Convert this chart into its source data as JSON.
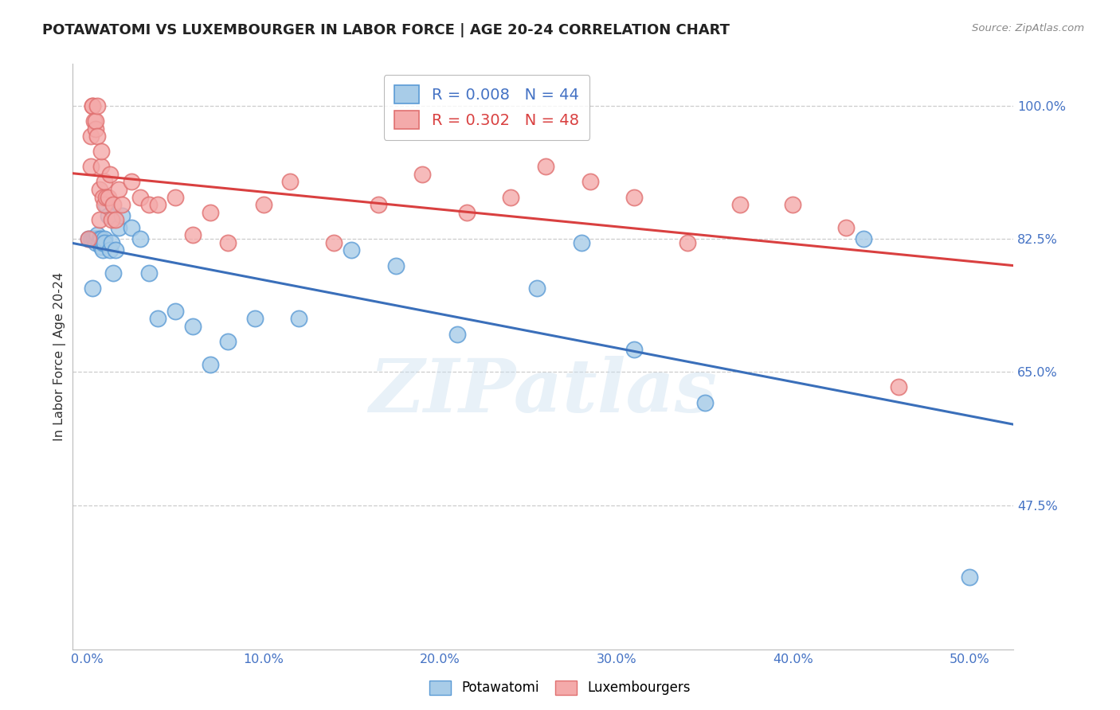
{
  "title": "POTAWATOMI VS LUXEMBOURGER IN LABOR FORCE | AGE 20-24 CORRELATION CHART",
  "source": "Source: ZipAtlas.com",
  "ylabel": "In Labor Force | Age 20-24",
  "xlabel_values": [
    0.0,
    0.1,
    0.2,
    0.3,
    0.4,
    0.5
  ],
  "xlabel_labels": [
    "0.0%",
    "10.0%",
    "20.0%",
    "30.0%",
    "40.0%",
    "50.0%"
  ],
  "ylabel_values": [
    0.475,
    0.65,
    0.825,
    1.0
  ],
  "ylabel_labels": [
    "47.5%",
    "65.0%",
    "82.5%",
    "100.0%"
  ],
  "ymin": 0.285,
  "ymax": 1.055,
  "xmin": -0.008,
  "xmax": 0.525,
  "blue_fill": "#a8cce8",
  "blue_edge": "#5b9bd5",
  "pink_fill": "#f4aaaa",
  "pink_edge": "#e07070",
  "line_blue": "#3a6fba",
  "line_pink": "#d94040",
  "R_blue": 0.008,
  "N_blue": 44,
  "R_pink": 0.302,
  "N_pink": 48,
  "potawatomi_x": [
    0.001,
    0.002,
    0.003,
    0.003,
    0.004,
    0.005,
    0.005,
    0.006,
    0.006,
    0.007,
    0.007,
    0.008,
    0.008,
    0.009,
    0.009,
    0.01,
    0.01,
    0.011,
    0.012,
    0.013,
    0.014,
    0.015,
    0.016,
    0.018,
    0.02,
    0.025,
    0.03,
    0.035,
    0.04,
    0.05,
    0.06,
    0.07,
    0.08,
    0.095,
    0.12,
    0.15,
    0.175,
    0.21,
    0.255,
    0.28,
    0.31,
    0.35,
    0.44,
    0.5
  ],
  "potawatomi_y": [
    0.825,
    0.825,
    0.76,
    0.825,
    0.825,
    0.82,
    0.825,
    0.825,
    0.83,
    0.825,
    0.82,
    0.815,
    0.825,
    0.81,
    0.82,
    0.825,
    0.82,
    0.87,
    0.855,
    0.81,
    0.82,
    0.78,
    0.81,
    0.84,
    0.855,
    0.84,
    0.825,
    0.78,
    0.72,
    0.73,
    0.71,
    0.66,
    0.69,
    0.72,
    0.72,
    0.81,
    0.79,
    0.7,
    0.76,
    0.82,
    0.68,
    0.61,
    0.825,
    0.38
  ],
  "luxembourger_x": [
    0.001,
    0.002,
    0.002,
    0.003,
    0.003,
    0.004,
    0.005,
    0.005,
    0.006,
    0.006,
    0.007,
    0.007,
    0.008,
    0.008,
    0.009,
    0.01,
    0.01,
    0.011,
    0.012,
    0.013,
    0.014,
    0.015,
    0.016,
    0.018,
    0.02,
    0.025,
    0.03,
    0.035,
    0.04,
    0.05,
    0.06,
    0.07,
    0.08,
    0.1,
    0.115,
    0.14,
    0.165,
    0.19,
    0.215,
    0.24,
    0.26,
    0.285,
    0.31,
    0.34,
    0.37,
    0.4,
    0.43,
    0.46
  ],
  "luxembourger_y": [
    0.825,
    0.92,
    0.96,
    1.0,
    1.0,
    0.98,
    0.97,
    0.98,
    1.0,
    0.96,
    0.85,
    0.89,
    0.92,
    0.94,
    0.88,
    0.87,
    0.9,
    0.88,
    0.88,
    0.91,
    0.85,
    0.87,
    0.85,
    0.89,
    0.87,
    0.9,
    0.88,
    0.87,
    0.87,
    0.88,
    0.83,
    0.86,
    0.82,
    0.87,
    0.9,
    0.82,
    0.87,
    0.91,
    0.86,
    0.88,
    0.92,
    0.9,
    0.88,
    0.82,
    0.87,
    0.87,
    0.84,
    0.63
  ],
  "watermark": "ZIPatlas",
  "bg": "#ffffff",
  "grid_color": "#cccccc",
  "tick_color": "#4472c4",
  "title_color": "#222222",
  "legend_blue_text": "#4472c4",
  "legend_pink_text": "#d94040"
}
